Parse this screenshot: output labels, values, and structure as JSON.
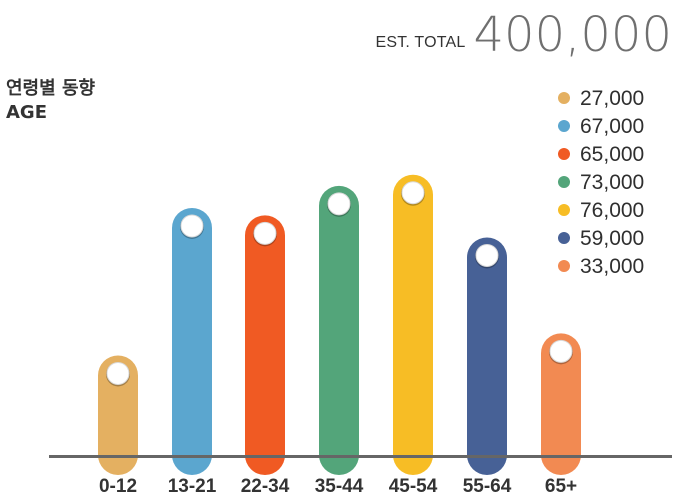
{
  "summary": {
    "label": "EST. TOTAL",
    "value": "400,000"
  },
  "titles": {
    "ko": "연령별 동향",
    "en": "AGE"
  },
  "chart_data": {
    "type": "bar",
    "title": "연령별 동향",
    "subtitle": "AGE",
    "categories": [
      "0-12",
      "13-21",
      "22-34",
      "35-44",
      "45-54",
      "55-64",
      "65+"
    ],
    "values": [
      27000,
      67000,
      65000,
      73000,
      76000,
      59000,
      33000
    ],
    "legend": [
      "27,000",
      "67,000",
      "65,000",
      "73,000",
      "76,000",
      "59,000",
      "33,000"
    ],
    "colors": [
      "#E4B061",
      "#5BA6CF",
      "#F05A23",
      "#53A57A",
      "#F7BD25",
      "#476196",
      "#F28A52"
    ],
    "xlabel": "",
    "ylabel": "",
    "ylim": [
      0,
      80000
    ],
    "grid": false,
    "legend_position": "right"
  }
}
